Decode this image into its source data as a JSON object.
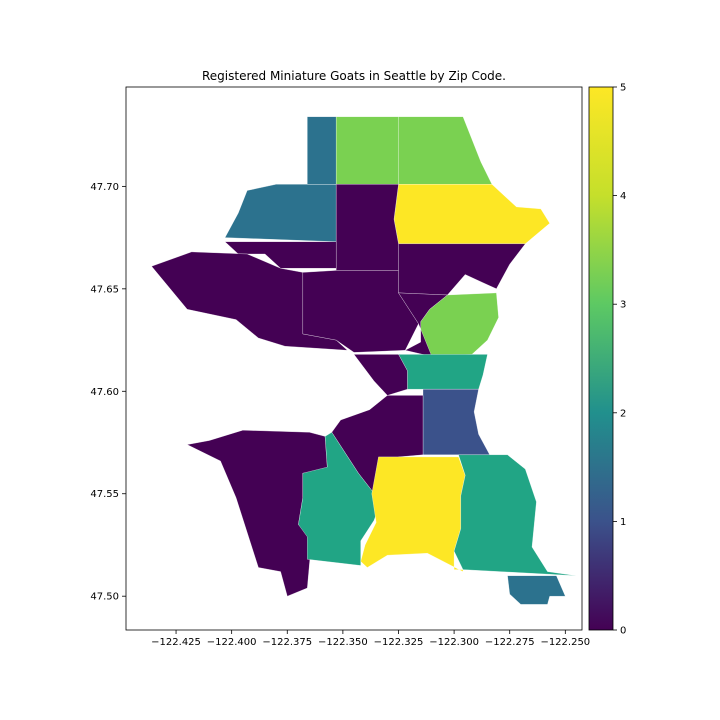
{
  "chart_data": {
    "type": "choropleth",
    "title": "Registered Miniature Goats in Seattle by Zip Code.",
    "xlabel": "",
    "ylabel": "",
    "xlim": [
      -122.4475,
      -122.2425
    ],
    "ylim": [
      47.4835,
      47.7485
    ],
    "x_ticks": [
      -122.425,
      -122.4,
      -122.375,
      -122.35,
      -122.325,
      -122.3,
      -122.275,
      -122.25
    ],
    "x_tick_labels": [
      "−122.425",
      "−122.400",
      "−122.375",
      "−122.350",
      "−122.325",
      "−122.300",
      "−122.275",
      "−122.250"
    ],
    "y_ticks": [
      47.5,
      47.55,
      47.6,
      47.65,
      47.7
    ],
    "y_tick_labels": [
      "47.50",
      "47.55",
      "47.60",
      "47.65",
      "47.70"
    ],
    "colorbar": {
      "colormap": "viridis",
      "range": [
        0,
        5
      ],
      "ticks": [
        0,
        1,
        2,
        3,
        4,
        5
      ],
      "tick_labels": [
        "0",
        "1",
        "2",
        "3",
        "4",
        "5"
      ]
    },
    "regions": [
      {
        "value": 2,
        "poly": [
          [
            -122.366,
            47.734
          ],
          [
            -122.353,
            47.734
          ],
          [
            -122.353,
            47.701
          ],
          [
            -122.38,
            47.701
          ],
          [
            -122.393,
            47.698
          ],
          [
            -122.397,
            47.687
          ],
          [
            -122.403,
            47.675
          ],
          [
            -122.353,
            47.673
          ],
          [
            -122.353,
            47.701
          ],
          [
            -122.366,
            47.701
          ]
        ]
      },
      {
        "value": 4,
        "poly": [
          [
            -122.353,
            47.734
          ],
          [
            -122.325,
            47.734
          ],
          [
            -122.325,
            47.701
          ],
          [
            -122.353,
            47.701
          ]
        ]
      },
      {
        "value": 4,
        "poly": [
          [
            -122.325,
            47.734
          ],
          [
            -122.296,
            47.734
          ],
          [
            -122.288,
            47.712
          ],
          [
            -122.283,
            47.701
          ],
          [
            -122.325,
            47.701
          ]
        ]
      },
      {
        "value": 5,
        "poly": [
          [
            -122.325,
            47.701
          ],
          [
            -122.283,
            47.701
          ],
          [
            -122.272,
            47.69
          ],
          [
            -122.261,
            47.689
          ],
          [
            -122.257,
            47.682
          ],
          [
            -122.268,
            47.672
          ],
          [
            -122.325,
            47.672
          ],
          [
            -122.327,
            47.684
          ]
        ]
      },
      {
        "value": 0,
        "poly": [
          [
            -122.353,
            47.701
          ],
          [
            -122.325,
            47.701
          ],
          [
            -122.327,
            47.684
          ],
          [
            -122.325,
            47.672
          ],
          [
            -122.325,
            47.659
          ],
          [
            -122.353,
            47.659
          ]
        ]
      },
      {
        "value": 0,
        "poly": [
          [
            -122.403,
            47.673
          ],
          [
            -122.353,
            47.673
          ],
          [
            -122.353,
            47.66
          ],
          [
            -122.378,
            47.66
          ],
          [
            -122.385,
            47.667
          ],
          [
            -122.397,
            47.667
          ]
        ]
      },
      {
        "value": 0,
        "poly": [
          [
            -122.393,
            47.667
          ],
          [
            -122.378,
            47.66
          ],
          [
            -122.368,
            47.658
          ],
          [
            -122.368,
            47.628
          ],
          [
            -122.353,
            47.625
          ],
          [
            -122.348,
            47.62
          ],
          [
            -122.376,
            47.622
          ],
          [
            -122.388,
            47.626
          ],
          [
            -122.398,
            47.635
          ],
          [
            -122.42,
            47.64
          ],
          [
            -122.436,
            47.661
          ],
          [
            -122.418,
            47.668
          ]
        ]
      },
      {
        "value": 0,
        "poly": [
          [
            -122.368,
            47.658
          ],
          [
            -122.353,
            47.659
          ],
          [
            -122.325,
            47.659
          ],
          [
            -122.325,
            47.648
          ],
          [
            -122.316,
            47.633
          ],
          [
            -122.322,
            47.62
          ],
          [
            -122.345,
            47.619
          ],
          [
            -122.353,
            47.625
          ],
          [
            -122.368,
            47.628
          ]
        ]
      },
      {
        "value": 0,
        "poly": [
          [
            -122.325,
            47.672
          ],
          [
            -122.268,
            47.672
          ],
          [
            -122.275,
            47.662
          ],
          [
            -122.281,
            47.65
          ],
          [
            -122.287,
            47.653
          ],
          [
            -122.295,
            47.657
          ],
          [
            -122.303,
            47.647
          ],
          [
            -122.325,
            47.648
          ]
        ]
      },
      {
        "value": 4,
        "poly": [
          [
            -122.303,
            47.647
          ],
          [
            -122.281,
            47.648
          ],
          [
            -122.28,
            47.636
          ],
          [
            -122.285,
            47.625
          ],
          [
            -122.292,
            47.618
          ],
          [
            -122.31,
            47.617
          ],
          [
            -122.315,
            47.624
          ],
          [
            -122.315,
            47.634
          ],
          [
            -122.311,
            47.64
          ]
        ]
      },
      {
        "value": 0,
        "poly": [
          [
            -122.322,
            47.62
          ],
          [
            -122.31,
            47.617
          ],
          [
            -122.316,
            47.633
          ],
          [
            -122.325,
            47.648
          ],
          [
            -122.303,
            47.647
          ],
          [
            -122.311,
            47.64
          ],
          [
            -122.315,
            47.634
          ],
          [
            -122.315,
            47.624
          ],
          [
            -122.322,
            47.62
          ]
        ]
      },
      {
        "value": 3,
        "poly": [
          [
            -122.325,
            47.618
          ],
          [
            -122.285,
            47.618
          ],
          [
            -122.287,
            47.608
          ],
          [
            -122.289,
            47.601
          ],
          [
            -122.321,
            47.601
          ],
          [
            -122.321,
            47.61
          ]
        ]
      },
      {
        "value": 0,
        "poly": [
          [
            -122.345,
            47.618
          ],
          [
            -122.325,
            47.618
          ],
          [
            -122.321,
            47.61
          ],
          [
            -122.321,
            47.601
          ],
          [
            -122.33,
            47.598
          ],
          [
            -122.336,
            47.605
          ]
        ]
      },
      {
        "value": 1,
        "poly": [
          [
            -122.314,
            47.601
          ],
          [
            -122.289,
            47.601
          ],
          [
            -122.291,
            47.59
          ],
          [
            -122.289,
            47.579
          ],
          [
            -122.284,
            47.569
          ],
          [
            -122.314,
            47.569
          ]
        ]
      },
      {
        "value": 0,
        "poly": [
          [
            -122.33,
            47.598
          ],
          [
            -122.314,
            47.598
          ],
          [
            -122.314,
            47.569
          ],
          [
            -122.325,
            47.568
          ],
          [
            -122.333,
            47.546
          ],
          [
            -122.343,
            47.56
          ],
          [
            -122.355,
            47.58
          ],
          [
            -122.351,
            47.586
          ],
          [
            -122.338,
            47.591
          ]
        ]
      },
      {
        "value": 0,
        "poly": [
          [
            -122.395,
            47.581
          ],
          [
            -122.365,
            47.58
          ],
          [
            -122.358,
            47.578
          ],
          [
            -122.357,
            47.563
          ],
          [
            -122.353,
            47.561
          ],
          [
            -122.368,
            47.56
          ],
          [
            -122.368,
            47.548
          ],
          [
            -122.37,
            47.535
          ],
          [
            -122.364,
            47.528
          ],
          [
            -122.366,
            47.504
          ],
          [
            -122.375,
            47.5
          ],
          [
            -122.378,
            47.512
          ],
          [
            -122.388,
            47.514
          ],
          [
            -122.398,
            47.548
          ],
          [
            -122.405,
            47.566
          ],
          [
            -122.42,
            47.574
          ],
          [
            -122.41,
            47.576
          ]
        ]
      },
      {
        "value": 3,
        "poly": [
          [
            -122.358,
            47.578
          ],
          [
            -122.355,
            47.58
          ],
          [
            -122.343,
            47.56
          ],
          [
            -122.333,
            47.546
          ],
          [
            -122.336,
            47.537
          ],
          [
            -122.342,
            47.527
          ],
          [
            -122.342,
            47.515
          ],
          [
            -122.366,
            47.518
          ],
          [
            -122.366,
            47.529
          ],
          [
            -122.37,
            47.535
          ],
          [
            -122.368,
            47.548
          ],
          [
            -122.368,
            47.56
          ],
          [
            -122.357,
            47.563
          ]
        ]
      },
      {
        "value": 5,
        "poly": [
          [
            -122.334,
            47.568
          ],
          [
            -122.298,
            47.568
          ],
          [
            -122.295,
            47.559
          ],
          [
            -122.297,
            47.549
          ],
          [
            -122.297,
            47.533
          ],
          [
            -122.3,
            47.522
          ],
          [
            -122.3,
            47.513
          ],
          [
            -122.296,
            47.513
          ],
          [
            -122.296,
            47.512
          ],
          [
            -122.312,
            47.521
          ],
          [
            -122.33,
            47.52
          ],
          [
            -122.339,
            47.514
          ],
          [
            -122.342,
            47.517
          ],
          [
            -122.34,
            47.525
          ],
          [
            -122.335,
            47.536
          ],
          [
            -122.337,
            47.55
          ]
        ]
      },
      {
        "value": 3,
        "poly": [
          [
            -122.298,
            47.569
          ],
          [
            -122.276,
            47.569
          ],
          [
            -122.268,
            47.562
          ],
          [
            -122.263,
            47.546
          ],
          [
            -122.265,
            47.524
          ],
          [
            -122.258,
            47.512
          ],
          [
            -122.245,
            47.51
          ],
          [
            -122.296,
            47.513
          ],
          [
            -122.3,
            47.522
          ],
          [
            -122.297,
            47.533
          ],
          [
            -122.297,
            47.549
          ],
          [
            -122.295,
            47.559
          ]
        ]
      },
      {
        "value": 2,
        "poly": [
          [
            -122.276,
            47.51
          ],
          [
            -122.254,
            47.51
          ],
          [
            -122.25,
            47.5
          ],
          [
            -122.257,
            47.5
          ],
          [
            -122.258,
            47.496
          ],
          [
            -122.27,
            47.496
          ],
          [
            -122.275,
            47.501
          ]
        ]
      }
    ]
  }
}
